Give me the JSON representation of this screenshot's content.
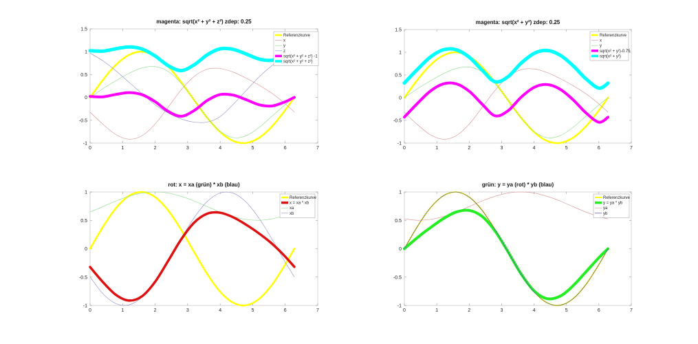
{
  "chart_data": [
    {
      "type": "line",
      "title": "magenta: sqrt(x² + y² + z²) zdep: 0.25",
      "xlim": [
        0,
        7
      ],
      "ylim": [
        -1,
        1.5
      ],
      "xticks": [
        0,
        1,
        2,
        3,
        4,
        5,
        6,
        7
      ],
      "yticks": [
        -1,
        -0.5,
        0,
        0.5,
        1,
        1.5
      ],
      "legend": "top-right",
      "grid": false,
      "x": [
        0,
        0.4,
        0.8,
        1.2,
        1.6,
        2.0,
        2.4,
        2.8,
        3.2,
        3.6,
        4.0,
        4.4,
        4.8,
        5.2,
        5.6,
        6.0,
        6.28
      ],
      "series": [
        {
          "name": "Referenzkurve",
          "color": "#ffff00",
          "values": [
            0,
            0.389,
            0.717,
            0.932,
            1.0,
            0.909,
            0.675,
            0.335,
            -0.058,
            -0.443,
            -0.757,
            -0.952,
            -0.996,
            -0.883,
            -0.631,
            -0.279,
            0
          ]
        },
        {
          "name": "x",
          "color": "#d98c8c",
          "values": [
            -0.322,
            -0.591,
            -0.815,
            -0.914,
            -0.836,
            -0.582,
            -0.215,
            0.164,
            0.46,
            0.617,
            0.634,
            0.554,
            0.422,
            0.267,
            0.086,
            -0.138,
            -0.319
          ]
        },
        {
          "name": "y",
          "color": "#8cd98c",
          "values": [
            0,
            0.195,
            0.369,
            0.528,
            0.646,
            0.675,
            0.568,
            0.31,
            -0.057,
            -0.443,
            -0.742,
            -0.88,
            -0.838,
            -0.656,
            -0.408,
            -0.158,
            0
          ]
        },
        {
          "name": "z",
          "color": "#8c8cc8",
          "values": [
            0.97,
            0.8,
            0.58,
            0.33,
            0.08,
            -0.16,
            -0.34,
            -0.47,
            -0.54,
            -0.54,
            -0.42,
            -0.15,
            0.15,
            0.45,
            0.7,
            0.88,
            0.95
          ]
        },
        {
          "name": "sqrt(x² + y² + z²) -1",
          "color": "#ff00ff",
          "values": [
            0.022,
            0.013,
            0.066,
            0.106,
            0.059,
            -0.094,
            -0.304,
            -0.413,
            -0.288,
            -0.068,
            0.063,
            0.051,
            -0.05,
            -0.161,
            -0.186,
            -0.095,
            0.002
          ]
        },
        {
          "name": "sqrt(x² + y² + z²)",
          "color": "#00ffff",
          "values": [
            1.022,
            1.013,
            1.066,
            1.106,
            1.059,
            0.906,
            0.696,
            0.587,
            0.712,
            0.932,
            1.063,
            1.051,
            0.95,
            0.839,
            0.814,
            0.905,
            1.002
          ]
        }
      ]
    },
    {
      "type": "line",
      "title": "magenta: sqrt(x² + y²) zdep: 0.25",
      "xlim": [
        0,
        7
      ],
      "ylim": [
        -1,
        1.5
      ],
      "xticks": [
        0,
        1,
        2,
        3,
        4,
        5,
        6,
        7
      ],
      "yticks": [
        -1,
        -0.5,
        0,
        0.5,
        1,
        1.5
      ],
      "legend": "top-right",
      "grid": false,
      "x": [
        0,
        0.4,
        0.8,
        1.2,
        1.6,
        2.0,
        2.4,
        2.8,
        3.2,
        3.6,
        4.0,
        4.4,
        4.8,
        5.2,
        5.6,
        6.0,
        6.28
      ],
      "series": [
        {
          "name": "Referenzkurve",
          "color": "#ffff00",
          "values": [
            0,
            0.389,
            0.717,
            0.932,
            1.0,
            0.909,
            0.675,
            0.335,
            -0.058,
            -0.443,
            -0.757,
            -0.952,
            -0.996,
            -0.883,
            -0.631,
            -0.279,
            0
          ]
        },
        {
          "name": "x",
          "color": "#d98c8c",
          "values": [
            -0.322,
            -0.591,
            -0.815,
            -0.914,
            -0.836,
            -0.582,
            -0.215,
            0.164,
            0.46,
            0.617,
            0.634,
            0.554,
            0.422,
            0.267,
            0.086,
            -0.138,
            -0.319
          ]
        },
        {
          "name": "y",
          "color": "#8cd98c",
          "values": [
            0,
            0.195,
            0.369,
            0.528,
            0.646,
            0.675,
            0.568,
            0.31,
            -0.057,
            -0.443,
            -0.742,
            -0.88,
            -0.838,
            -0.656,
            -0.408,
            -0.158,
            0
          ]
        },
        {
          "name": "sqrt(x² + y²)-0.75",
          "color": "#ff00ff",
          "values": [
            -0.428,
            -0.128,
            0.144,
            0.305,
            0.306,
            0.142,
            -0.143,
            -0.399,
            -0.286,
            0.01,
            0.226,
            0.29,
            0.188,
            -0.042,
            -0.334,
            -0.54,
            -0.431
          ]
        },
        {
          "name": "sqrt(x² + y²)",
          "color": "#00ffff",
          "values": [
            0.322,
            0.622,
            0.894,
            1.055,
            1.056,
            0.892,
            0.607,
            0.351,
            0.464,
            0.76,
            0.976,
            1.04,
            0.938,
            0.708,
            0.416,
            0.21,
            0.319
          ]
        }
      ]
    },
    {
      "type": "line",
      "title": "rot: x = xa (grün) * xb (blau)",
      "xlim": [
        0,
        7
      ],
      "ylim": [
        -1,
        1
      ],
      "xticks": [
        0,
        1,
        2,
        3,
        4,
        5,
        6,
        7
      ],
      "yticks": [
        -1,
        -0.5,
        0,
        0.5,
        1
      ],
      "legend": "top-right",
      "grid": false,
      "x": [
        0,
        0.4,
        0.8,
        1.2,
        1.6,
        2.0,
        2.4,
        2.8,
        3.2,
        3.6,
        4.0,
        4.4,
        4.8,
        5.2,
        5.6,
        6.0,
        6.28
      ],
      "series": [
        {
          "name": "Referenzkurve",
          "color": "#ffff00",
          "values": [
            0,
            0.389,
            0.717,
            0.932,
            1.0,
            0.909,
            0.675,
            0.335,
            -0.058,
            -0.443,
            -0.757,
            -0.952,
            -0.996,
            -0.883,
            -0.631,
            -0.279,
            0
          ]
        },
        {
          "name": "x = xa * xb",
          "color": "#dd1111",
          "values": [
            -0.322,
            -0.591,
            -0.815,
            -0.914,
            -0.836,
            -0.582,
            -0.215,
            0.164,
            0.46,
            0.617,
            0.634,
            0.554,
            0.422,
            0.267,
            0.086,
            -0.138,
            -0.319
          ]
        },
        {
          "name": "xa",
          "color": "#8cd98c",
          "values": [
            0.646,
            0.743,
            0.841,
            0.924,
            0.98,
            1.0,
            0.98,
            0.924,
            0.841,
            0.743,
            0.646,
            0.566,
            0.515,
            0.501,
            0.526,
            0.587,
            0.645
          ]
        },
        {
          "name": "xb",
          "color": "#8c8cc8",
          "values": [
            -0.498,
            -0.796,
            -0.969,
            -0.989,
            -0.853,
            -0.582,
            -0.219,
            0.178,
            0.547,
            0.83,
            0.982,
            0.978,
            0.82,
            0.532,
            0.163,
            -0.235,
            -0.494
          ]
        }
      ]
    },
    {
      "type": "line",
      "title": "grün: y = ya (rot) * yb (blau)",
      "xlim": [
        0,
        7
      ],
      "ylim": [
        -1,
        1
      ],
      "xticks": [
        0,
        1,
        2,
        3,
        4,
        5,
        6,
        7
      ],
      "yticks": [
        -1,
        -0.5,
        0,
        0.5,
        1
      ],
      "legend": "top-right",
      "grid": false,
      "x": [
        0,
        0.4,
        0.8,
        1.2,
        1.6,
        2.0,
        2.4,
        2.8,
        3.2,
        3.6,
        4.0,
        4.4,
        4.8,
        5.2,
        5.6,
        6.0,
        6.28
      ],
      "series": [
        {
          "name": "Referenzkurve",
          "color": "#ffff00",
          "values": [
            0,
            0.389,
            0.717,
            0.932,
            1.0,
            0.909,
            0.675,
            0.335,
            -0.058,
            -0.443,
            -0.757,
            -0.952,
            -0.996,
            -0.883,
            -0.631,
            -0.279,
            0
          ]
        },
        {
          "name": "y = ya * yb",
          "color": "#22ee22",
          "values": [
            0,
            0.195,
            0.369,
            0.528,
            0.646,
            0.675,
            0.568,
            0.31,
            -0.057,
            -0.443,
            -0.742,
            -0.88,
            -0.838,
            -0.656,
            -0.408,
            -0.158,
            0
          ]
        },
        {
          "name": "ya",
          "color": "#d98c8c",
          "values": [
            0.526,
            0.501,
            0.515,
            0.566,
            0.646,
            0.743,
            0.841,
            0.924,
            0.98,
            1.0,
            0.98,
            0.924,
            0.841,
            0.743,
            0.646,
            0.566,
            0.526
          ]
        },
        {
          "name": "yb",
          "color": "#6060b0",
          "values": [
            0,
            0.389,
            0.717,
            0.932,
            1.0,
            0.909,
            0.675,
            0.335,
            -0.058,
            -0.443,
            -0.757,
            -0.952,
            -0.996,
            -0.883,
            -0.631,
            -0.279,
            0
          ]
        }
      ]
    }
  ]
}
